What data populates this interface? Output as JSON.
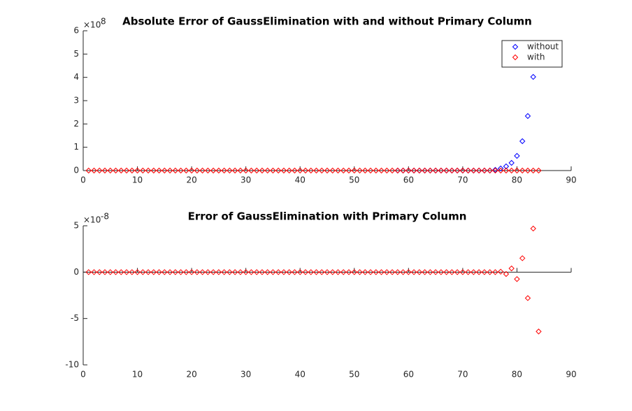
{
  "chart_data": [
    {
      "type": "scatter",
      "title": "Absolute Error of GaussElimination with and without Primary Column",
      "xlim": [
        0,
        90
      ],
      "xticks": [
        0,
        10,
        20,
        30,
        40,
        50,
        60,
        70,
        80,
        90
      ],
      "ylim": [
        0,
        6
      ],
      "yticks": [
        0,
        1,
        2,
        3,
        4,
        5,
        6
      ],
      "y_scale": {
        "base": "×10",
        "power": "8"
      },
      "legend": "northeast",
      "series": [
        {
          "name": "without",
          "color": "#0000ff",
          "x": [
            58,
            59,
            60,
            61,
            62,
            63,
            64,
            65,
            66,
            67,
            68,
            69,
            70,
            71,
            72,
            73,
            74,
            75,
            76,
            77,
            78,
            79,
            80,
            81,
            82,
            83
          ],
          "values": [
            0,
            0,
            0,
            0,
            0,
            0,
            0,
            0,
            0,
            0,
            0,
            0,
            0,
            0,
            0,
            0,
            0,
            0,
            0.03,
            0.09,
            0.18,
            0.33,
            0.63,
            1.26,
            2.34,
            4.02
          ]
        },
        {
          "name": "with",
          "color": "#ff0000",
          "x": [
            1,
            2,
            3,
            4,
            5,
            6,
            7,
            8,
            9,
            10,
            11,
            12,
            13,
            14,
            15,
            16,
            17,
            18,
            19,
            20,
            21,
            22,
            23,
            24,
            25,
            26,
            27,
            28,
            29,
            30,
            31,
            32,
            33,
            34,
            35,
            36,
            37,
            38,
            39,
            40,
            41,
            42,
            43,
            44,
            45,
            46,
            47,
            48,
            49,
            50,
            51,
            52,
            53,
            54,
            55,
            56,
            57,
            58,
            59,
            60,
            61,
            62,
            63,
            64,
            65,
            66,
            67,
            68,
            69,
            70,
            71,
            72,
            73,
            74,
            75,
            76,
            77,
            78,
            79,
            80,
            81,
            82,
            83,
            84
          ],
          "values": [
            0,
            0,
            0,
            0,
            0,
            0,
            0,
            0,
            0,
            0,
            0,
            0,
            0,
            0,
            0,
            0,
            0,
            0,
            0,
            0,
            0,
            0,
            0,
            0,
            0,
            0,
            0,
            0,
            0,
            0,
            0,
            0,
            0,
            0,
            0,
            0,
            0,
            0,
            0,
            0,
            0,
            0,
            0,
            0,
            0,
            0,
            0,
            0,
            0,
            0,
            0,
            0,
            0,
            0,
            0,
            0,
            0,
            0,
            0,
            0,
            0,
            0,
            0,
            0,
            0,
            0,
            0,
            0,
            0,
            0,
            0,
            0,
            0,
            0,
            0,
            0,
            0,
            0,
            0,
            0,
            0,
            0,
            0,
            0
          ]
        }
      ]
    },
    {
      "type": "scatter",
      "title": "Error of GaussElimination with Primary Column",
      "xlim": [
        0,
        90
      ],
      "xticks": [
        0,
        10,
        20,
        30,
        40,
        50,
        60,
        70,
        80,
        90
      ],
      "ylim": [
        -10,
        5
      ],
      "yticks": [
        -10,
        -5,
        0,
        5
      ],
      "y_scale": {
        "base": "×10",
        "power": "-8"
      },
      "series": [
        {
          "color": "#ff0000",
          "x": [
            1,
            2,
            3,
            4,
            5,
            6,
            7,
            8,
            9,
            10,
            11,
            12,
            13,
            14,
            15,
            16,
            17,
            18,
            19,
            20,
            21,
            22,
            23,
            24,
            25,
            26,
            27,
            28,
            29,
            30,
            31,
            32,
            33,
            34,
            35,
            36,
            37,
            38,
            39,
            40,
            41,
            42,
            43,
            44,
            45,
            46,
            47,
            48,
            49,
            50,
            51,
            52,
            53,
            54,
            55,
            56,
            57,
            58,
            59,
            60,
            61,
            62,
            63,
            64,
            65,
            66,
            67,
            68,
            69,
            70,
            71,
            72,
            73,
            74,
            75,
            76,
            77,
            78,
            79,
            80,
            81,
            82,
            83,
            84
          ],
          "values": [
            0,
            0,
            0,
            0,
            0,
            0,
            0,
            0,
            0,
            0,
            0,
            0,
            0,
            0,
            0,
            0,
            0,
            0,
            0,
            0,
            0,
            0,
            0,
            0,
            0,
            0,
            0,
            0,
            0,
            0,
            0,
            0,
            0,
            0,
            0,
            0,
            0,
            0,
            0,
            0,
            0,
            0,
            0,
            0,
            0,
            0,
            0,
            0,
            0,
            0,
            0,
            0,
            0,
            0,
            0,
            0,
            0,
            0,
            0,
            0,
            0,
            0,
            0,
            0,
            0,
            0,
            0,
            0,
            0,
            0,
            0,
            0,
            0,
            0,
            0,
            0,
            0.05,
            -0.2,
            0.4,
            -0.75,
            1.5,
            -2.8,
            4.7,
            -6.4
          ]
        }
      ]
    }
  ]
}
